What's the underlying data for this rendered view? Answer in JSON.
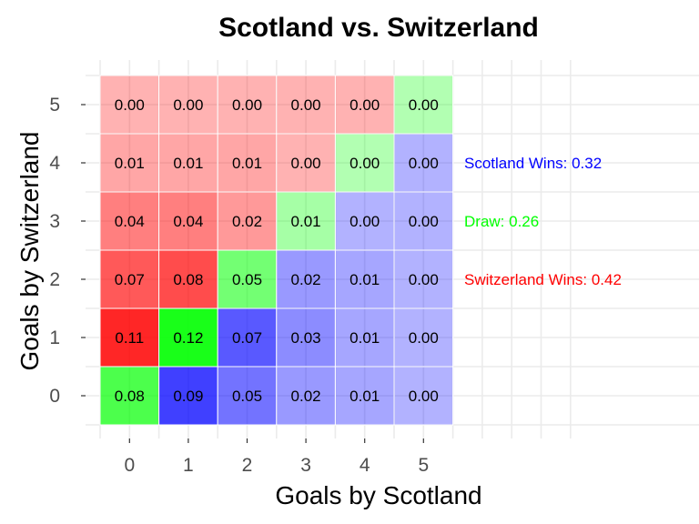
{
  "chart_data": {
    "type": "heatmap",
    "title": "Scotland vs. Switzerland",
    "xlabel": "Goals by Scotland",
    "ylabel": "Goals by Switzerland",
    "x": [
      0,
      1,
      2,
      3,
      4,
      5
    ],
    "y": [
      0,
      1,
      2,
      3,
      4,
      5
    ],
    "x_tick_labels": [
      "0",
      "1",
      "2",
      "3",
      "4",
      "5"
    ],
    "y_tick_labels": [
      "0",
      "1",
      "2",
      "3",
      "4",
      "5"
    ],
    "grid": true,
    "values": [
      [
        0.08,
        0.09,
        0.05,
        0.02,
        0.01,
        0.0
      ],
      [
        0.11,
        0.12,
        0.07,
        0.03,
        0.01,
        0.0
      ],
      [
        0.07,
        0.08,
        0.05,
        0.02,
        0.01,
        0.0
      ],
      [
        0.04,
        0.04,
        0.02,
        0.01,
        0.0,
        0.0
      ],
      [
        0.01,
        0.01,
        0.01,
        0.0,
        0.0,
        0.0
      ],
      [
        0.0,
        0.0,
        0.0,
        0.0,
        0.0,
        0.0
      ]
    ],
    "value_labels": [
      [
        "0.08",
        "0.09",
        "0.05",
        "0.02",
        "0.01",
        "0.00"
      ],
      [
        "0.11",
        "0.12",
        "0.07",
        "0.03",
        "0.01",
        "0.00"
      ],
      [
        "0.07",
        "0.08",
        "0.05",
        "0.02",
        "0.01",
        "0.00"
      ],
      [
        "0.04",
        "0.04",
        "0.02",
        "0.01",
        "0.00",
        "0.00"
      ],
      [
        "0.01",
        "0.01",
        "0.01",
        "0.00",
        "0.00",
        "0.00"
      ],
      [
        "0.00",
        "0.00",
        "0.00",
        "0.00",
        "0.00",
        "0.00"
      ]
    ],
    "colors": {
      "scotland_win": "#0000ff",
      "draw": "#00ff00",
      "switzerland_win": "#ff0000"
    },
    "annotations": [
      {
        "text": "Scotland Wins: 0.32",
        "color": "#0000ff"
      },
      {
        "text": "Draw: 0.26",
        "color": "#00ff00"
      },
      {
        "text": "Switzerland Wins: 0.42",
        "color": "#ff0000"
      }
    ]
  }
}
